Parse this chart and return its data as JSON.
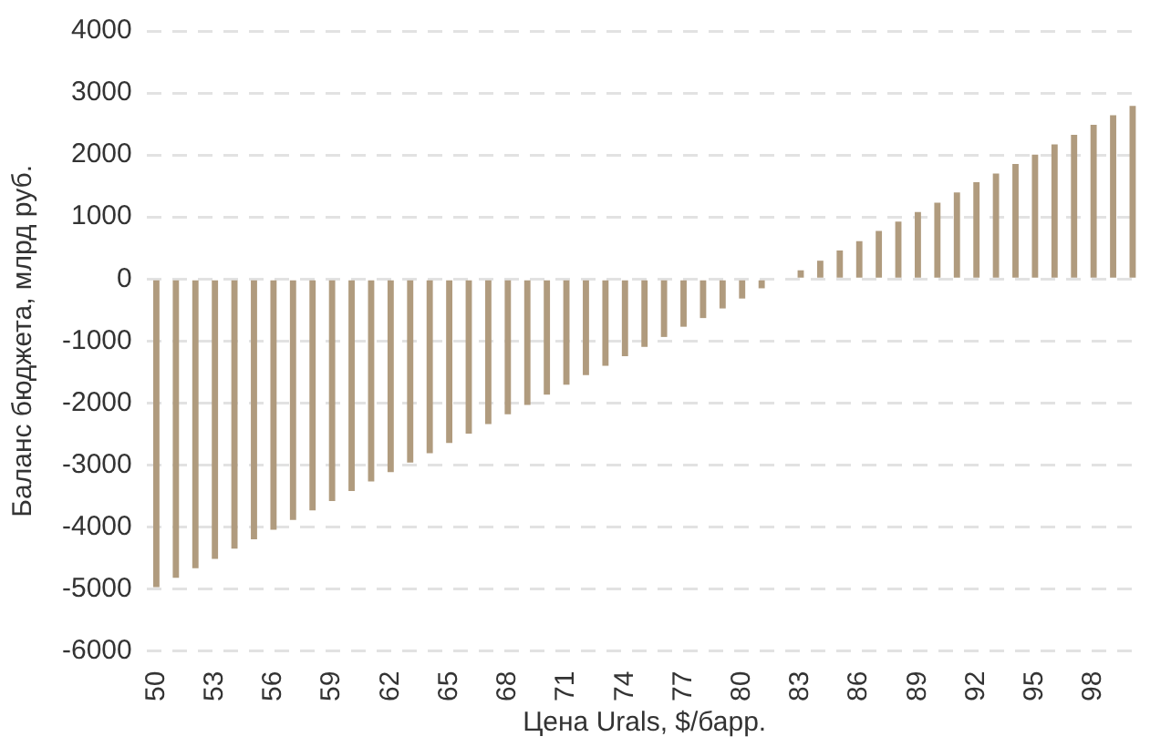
{
  "chart_data": {
    "type": "bar",
    "xlabel": "Цена Urals, $/барр.",
    "ylabel": "Баланс бюджета, млрд руб.",
    "categories": [
      "50",
      null,
      null,
      "53",
      null,
      null,
      "56",
      null,
      null,
      "59",
      null,
      null,
      "62",
      null,
      null,
      "65",
      null,
      null,
      "68",
      null,
      null,
      "71",
      null,
      null,
      "74",
      null,
      null,
      "77",
      null,
      null,
      "80",
      null,
      null,
      "83",
      null,
      null,
      "86",
      null,
      null,
      "89",
      null,
      null,
      "92",
      null,
      null,
      "95",
      null,
      null,
      "98",
      null,
      null
    ],
    "values": [
      -4970,
      -4820,
      -4665,
      -4515,
      -4350,
      -4200,
      -4045,
      -3885,
      -3730,
      -3580,
      -3420,
      -3265,
      -3115,
      -2960,
      -2810,
      -2645,
      -2495,
      -2340,
      -2180,
      -2030,
      -1865,
      -1705,
      -1550,
      -1400,
      -1245,
      -1095,
      -935,
      -770,
      -630,
      -475,
      -315,
      -150,
      0,
      140,
      295,
      460,
      610,
      775,
      925,
      1080,
      1230,
      1395,
      1560,
      1700,
      1855,
      2005,
      2170,
      2325,
      2485,
      2640,
      2790
    ],
    "color": "#b09b7e",
    "ylim": [
      -6000,
      4000
    ],
    "yticks": [
      -6000,
      -5000,
      -4000,
      -3000,
      -2000,
      -1000,
      0,
      1000,
      2000,
      3000,
      4000
    ],
    "grid": "y",
    "legend": false
  }
}
